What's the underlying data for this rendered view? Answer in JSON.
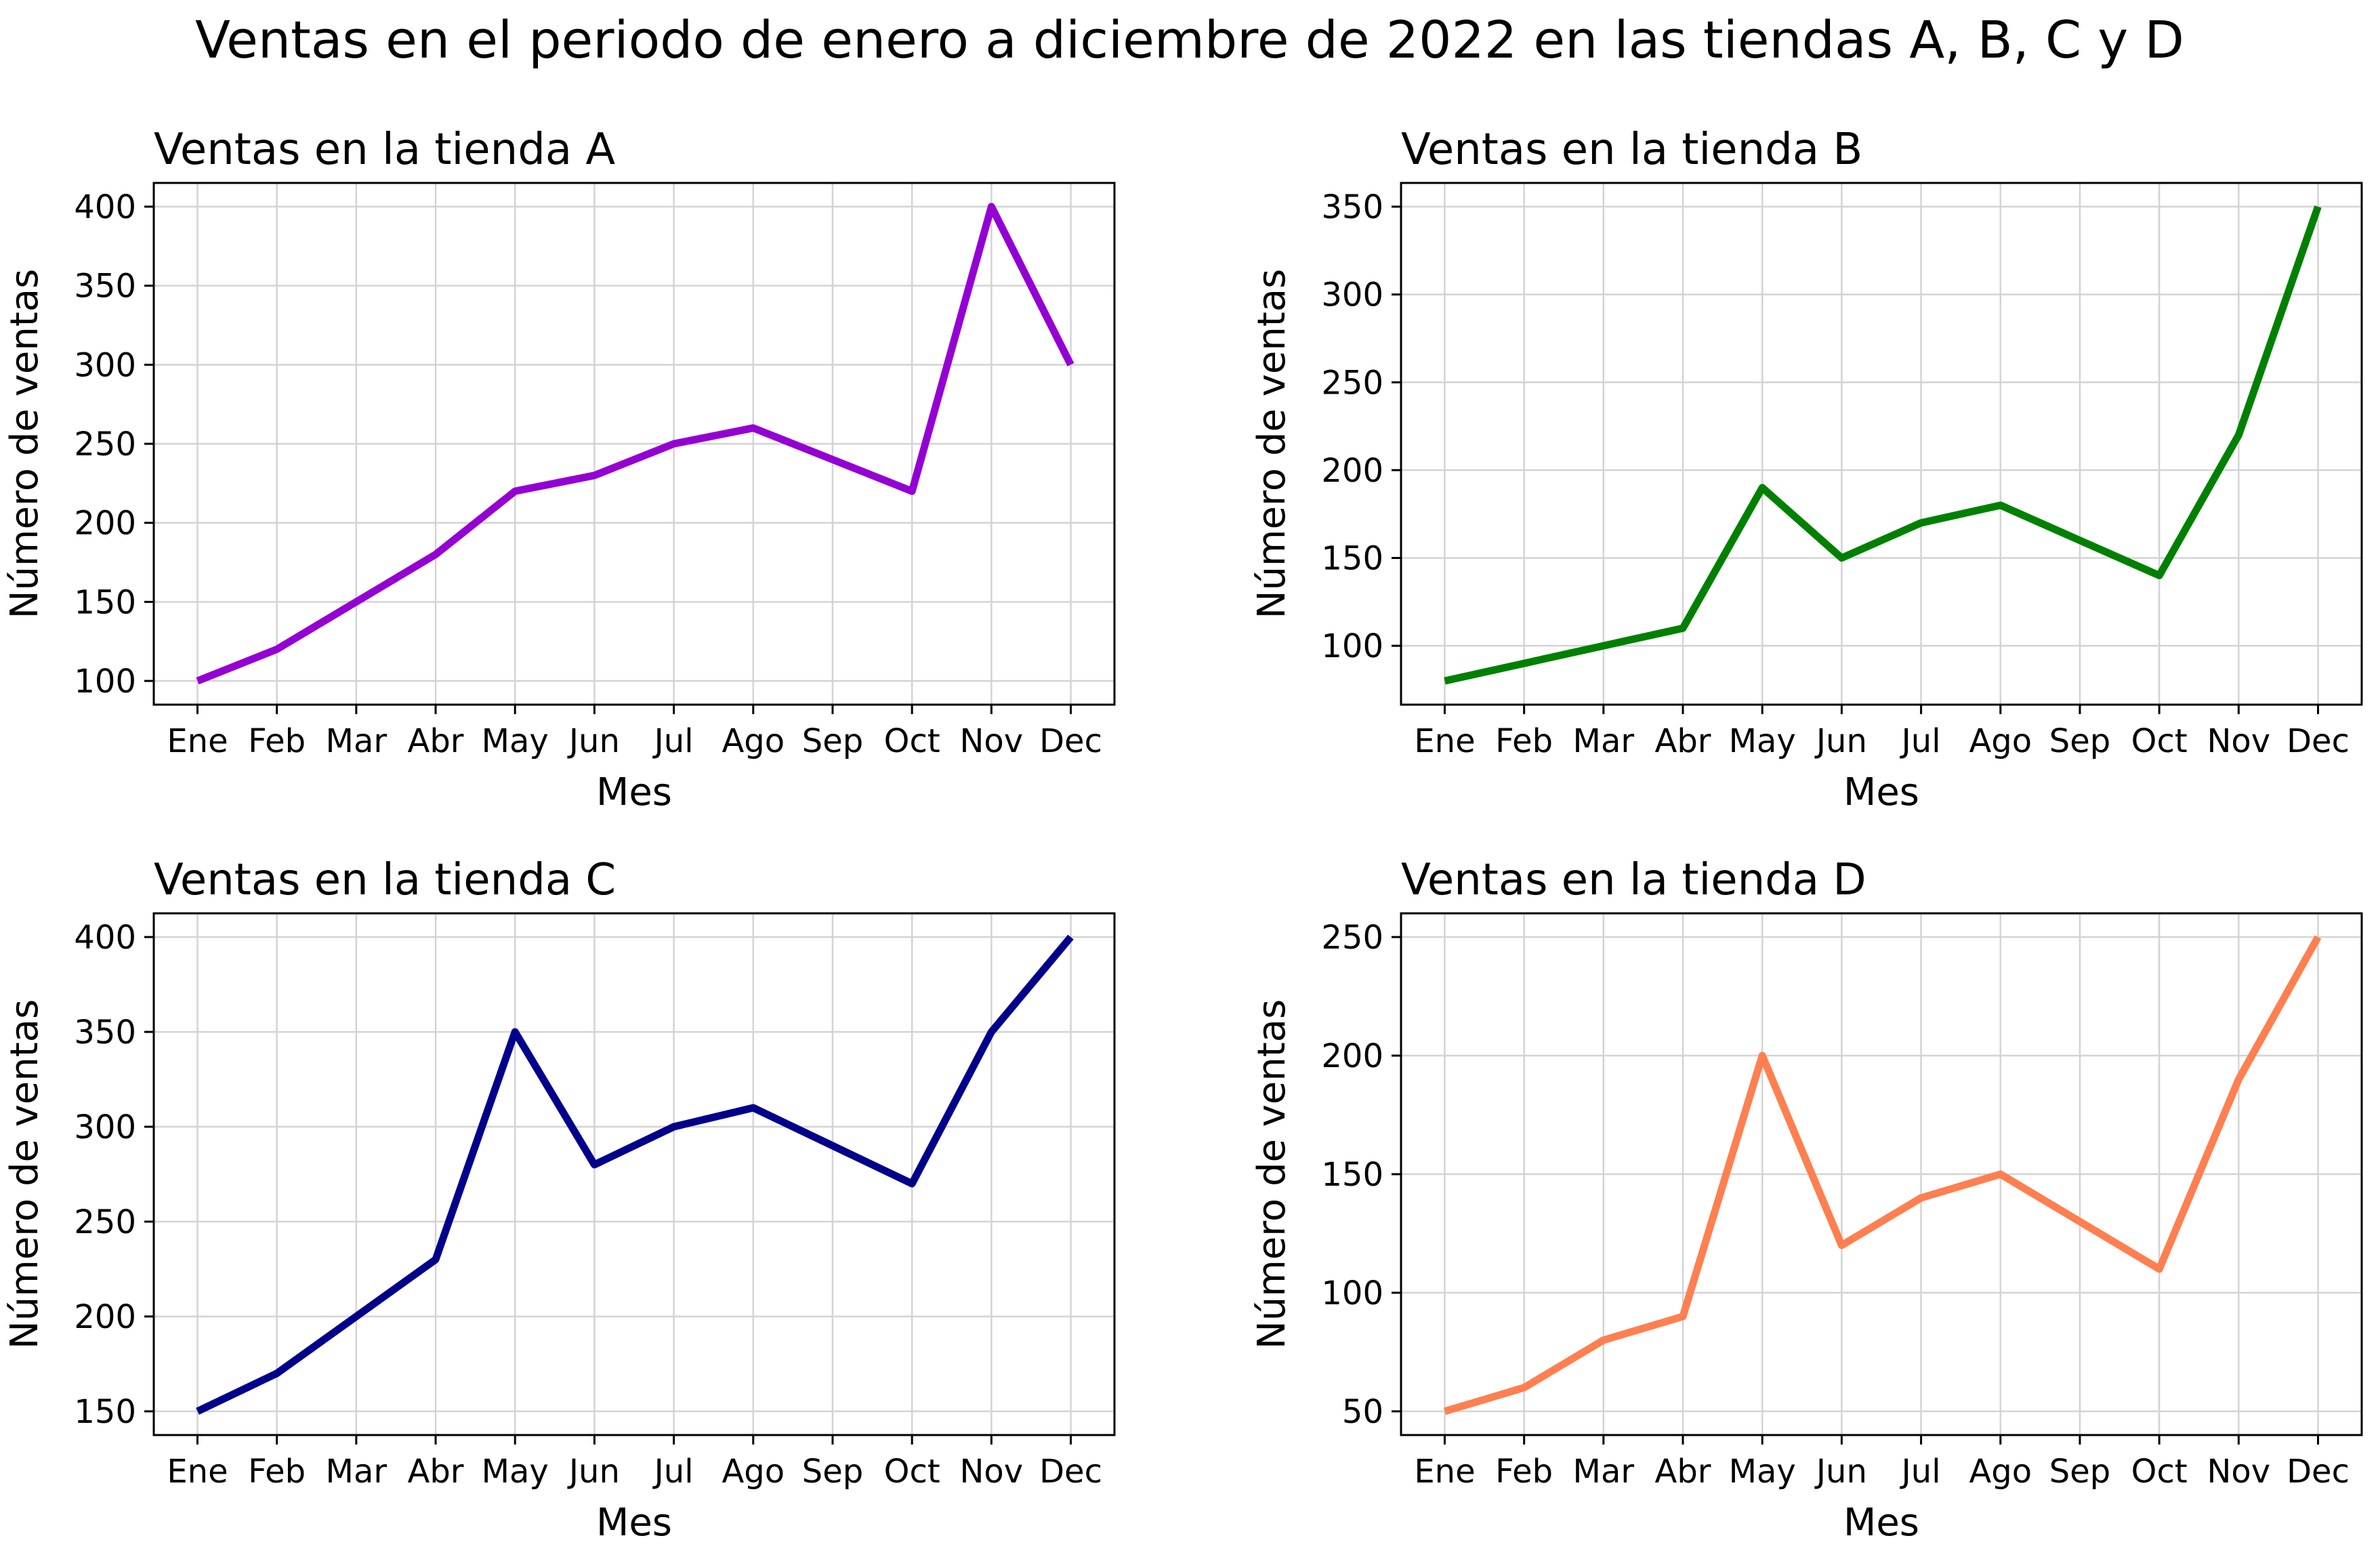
{
  "figure": {
    "title": "Ventas en el periodo de enero a diciembre de 2022 en las tiendas A, B, C y D"
  },
  "chart_data": [
    {
      "type": "line",
      "title": "Ventas en la tienda A",
      "xlabel": "Mes",
      "ylabel": "Número de ventas",
      "categories": [
        "Ene",
        "Feb",
        "Mar",
        "Abr",
        "May",
        "Jun",
        "Jul",
        "Ago",
        "Sep",
        "Oct",
        "Nov",
        "Dec"
      ],
      "series": [
        {
          "name": "Tienda A",
          "values": [
            100,
            120,
            150,
            180,
            220,
            230,
            250,
            260,
            240,
            220,
            400,
            300
          ],
          "color": "#9400d3"
        }
      ],
      "ylim": [
        85,
        415
      ],
      "yticks": [
        100,
        150,
        200,
        250,
        300,
        350,
        400
      ],
      "grid": true
    },
    {
      "type": "line",
      "title": "Ventas en la tienda B",
      "xlabel": "Mes",
      "ylabel": "Número de ventas",
      "categories": [
        "Ene",
        "Feb",
        "Mar",
        "Abr",
        "May",
        "Jun",
        "Jul",
        "Ago",
        "Sep",
        "Oct",
        "Nov",
        "Dec"
      ],
      "series": [
        {
          "name": "Tienda B",
          "values": [
            80,
            90,
            100,
            110,
            190,
            150,
            170,
            180,
            160,
            140,
            220,
            350
          ],
          "color": "#008000"
        }
      ],
      "ylim": [
        66.5,
        363.5
      ],
      "yticks": [
        100,
        150,
        200,
        250,
        300,
        350
      ],
      "grid": true
    },
    {
      "type": "line",
      "title": "Ventas en la tienda C",
      "xlabel": "Mes",
      "ylabel": "Número de ventas",
      "categories": [
        "Ene",
        "Feb",
        "Mar",
        "Abr",
        "May",
        "Jun",
        "Jul",
        "Ago",
        "Sep",
        "Oct",
        "Nov",
        "Dec"
      ],
      "series": [
        {
          "name": "Tienda C",
          "values": [
            150,
            170,
            200,
            230,
            350,
            280,
            300,
            310,
            290,
            270,
            350,
            400
          ],
          "color": "#00008b"
        }
      ],
      "ylim": [
        137.5,
        412.5
      ],
      "yticks": [
        150,
        200,
        250,
        300,
        350,
        400
      ],
      "grid": true
    },
    {
      "type": "line",
      "title": "Ventas en la tienda D",
      "xlabel": "Mes",
      "ylabel": "Número de ventas",
      "categories": [
        "Ene",
        "Feb",
        "Mar",
        "Abr",
        "May",
        "Jun",
        "Jul",
        "Ago",
        "Sep",
        "Oct",
        "Nov",
        "Dec"
      ],
      "series": [
        {
          "name": "Tienda D",
          "values": [
            50,
            60,
            80,
            90,
            200,
            120,
            140,
            150,
            130,
            110,
            190,
            250
          ],
          "color": "#ff7f50"
        }
      ],
      "ylim": [
        40,
        260
      ],
      "yticks": [
        50,
        100,
        150,
        200,
        250
      ],
      "grid": true
    }
  ]
}
